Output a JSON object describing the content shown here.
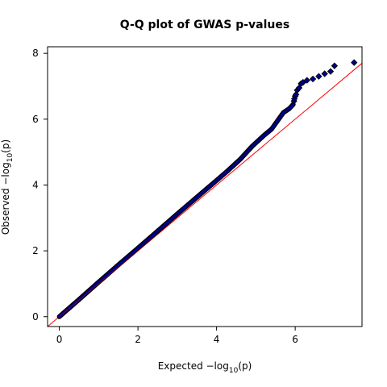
{
  "chart_data": {
    "type": "scatter",
    "title": "Q-Q plot of GWAS p-values",
    "xlabel": {
      "prefix": "Expected  −log",
      "sub": "10",
      "suffix": "(p)"
    },
    "ylabel": {
      "prefix": "Observed  −log",
      "sub": "10",
      "suffix": "(p)"
    },
    "xlim": [
      -0.3,
      7.7
    ],
    "ylim": [
      -0.3,
      8.2
    ],
    "xticks": [
      0,
      2,
      4,
      6
    ],
    "yticks": [
      0,
      2,
      4,
      6,
      8
    ],
    "xtick_labels": [
      "0",
      "2",
      "4",
      "6"
    ],
    "ytick_labels": [
      "0",
      "2",
      "4",
      "6",
      "8"
    ],
    "grid": false,
    "reference_line": {
      "slope": 1,
      "intercept": 0,
      "color": "#ff0000"
    },
    "point_fill": "#00008b",
    "point_edge": "#000000",
    "point_marker": "diamond",
    "curve": [
      [
        0,
        0
      ],
      [
        0.5,
        0.52
      ],
      [
        1,
        1.05
      ],
      [
        1.5,
        1.57
      ],
      [
        2,
        2.08
      ],
      [
        2.5,
        2.6
      ],
      [
        3,
        3.12
      ],
      [
        3.5,
        3.63
      ],
      [
        4,
        4.14
      ],
      [
        4.3,
        4.45
      ],
      [
        4.6,
        4.78
      ],
      [
        4.9,
        5.17
      ],
      [
        5.2,
        5.5
      ],
      [
        5.4,
        5.7
      ],
      [
        5.55,
        5.95
      ],
      [
        5.7,
        6.2
      ],
      [
        5.85,
        6.32
      ],
      [
        5.95,
        6.45
      ]
    ],
    "tail_points": [
      [
        5.97,
        6.55
      ],
      [
        5.98,
        6.62
      ],
      [
        6.0,
        6.7
      ],
      [
        6.02,
        6.75
      ],
      [
        6.05,
        6.88
      ],
      [
        6.1,
        6.95
      ],
      [
        6.15,
        7.08
      ],
      [
        6.2,
        7.12
      ],
      [
        6.3,
        7.18
      ],
      [
        6.45,
        7.22
      ],
      [
        6.6,
        7.3
      ],
      [
        6.75,
        7.38
      ],
      [
        6.9,
        7.45
      ],
      [
        7.0,
        7.62
      ],
      [
        7.5,
        7.72
      ]
    ]
  }
}
